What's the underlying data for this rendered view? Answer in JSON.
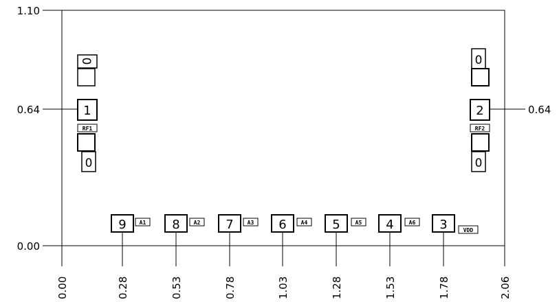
{
  "dimensions": {
    "y_labels": [
      "1.10",
      "0.64",
      "0.00"
    ],
    "right_label": "0.64",
    "x_labels": [
      "0.00",
      "0.28",
      "0.53",
      "0.78",
      "1.03",
      "1.28",
      "1.53",
      "1.78",
      "2.06"
    ]
  },
  "bottom_pads": [
    {
      "num": "9",
      "tag": "A1"
    },
    {
      "num": "8",
      "tag": "A2"
    },
    {
      "num": "7",
      "tag": "A3"
    },
    {
      "num": "6",
      "tag": "A4"
    },
    {
      "num": "5",
      "tag": "A5"
    },
    {
      "num": "4",
      "tag": "A6"
    },
    {
      "num": "3",
      "tag": "VDD"
    }
  ],
  "left_stack": {
    "pad_num": "1",
    "tag": "RF1",
    "zero_top": "0",
    "zero_bottom": "0"
  },
  "right_stack": {
    "pad_num": "2",
    "tag": "RF2",
    "zero_top": "0",
    "zero_bottom": "0"
  }
}
